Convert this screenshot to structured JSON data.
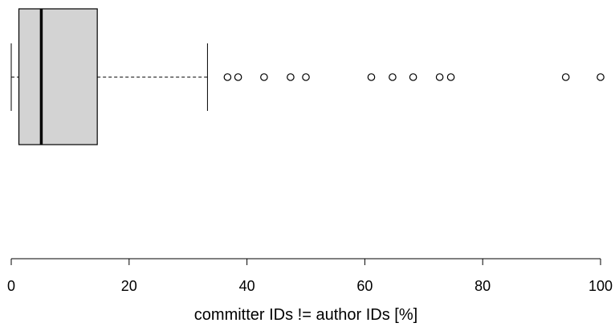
{
  "chart_data": {
    "type": "boxplot",
    "orientation": "horizontal",
    "title": "",
    "xlabel": "committer IDs != author IDs [%]",
    "ylabel": "",
    "xlim": [
      0,
      100
    ],
    "ticks": [
      0,
      20,
      40,
      60,
      80,
      100
    ],
    "tick_labels": [
      "0",
      "20",
      "40",
      "60",
      "80",
      "100"
    ],
    "grid": false,
    "box": {
      "whisker_low": 0,
      "q1": 1.3,
      "median": 5.1,
      "q3": 14.6,
      "whisker_high": 33.3
    },
    "outliers": [
      36.7,
      38.5,
      42.9,
      47.4,
      50.0,
      61.1,
      64.7,
      68.2,
      72.7,
      74.6,
      94.1,
      100.0
    ],
    "colors": {
      "box_fill": "#d3d3d3",
      "stroke": "#000000"
    }
  }
}
